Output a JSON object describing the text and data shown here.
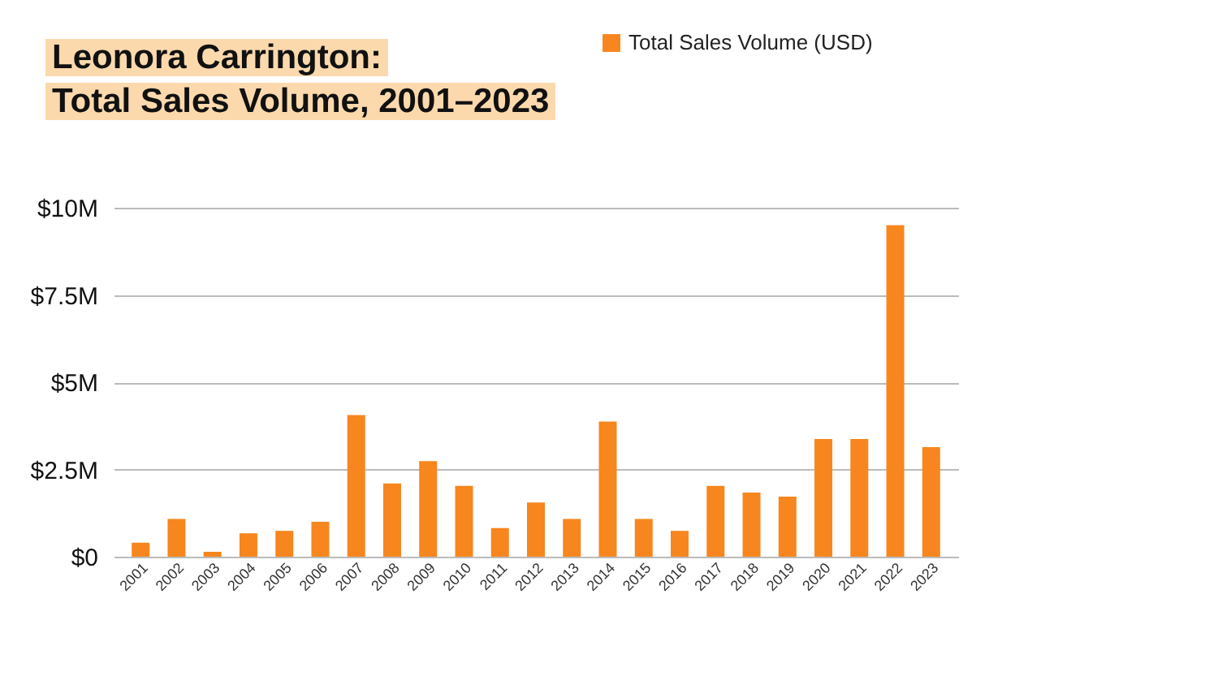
{
  "chart_data": {
    "type": "bar",
    "title": "Leonora Carrington:\nTotal Sales Volume, 2001–2023",
    "categories": [
      "2001",
      "2002",
      "2003",
      "2004",
      "2005",
      "2006",
      "2007",
      "2008",
      "2009",
      "2010",
      "2011",
      "2012",
      "2013",
      "2014",
      "2015",
      "2016",
      "2017",
      "2018",
      "2019",
      "2020",
      "2021",
      "2022",
      "2023"
    ],
    "series": [
      {
        "name": "Total Sales Volume (USD)",
        "color": "#f7861e",
        "values": [
          0.4,
          1.08,
          0.14,
          0.67,
          0.74,
          1.0,
          4.06,
          2.1,
          2.74,
          2.03,
          0.82,
          1.55,
          1.08,
          3.87,
          1.08,
          0.74,
          2.03,
          1.84,
          1.72,
          3.37,
          3.37,
          9.5,
          3.14
        ]
      }
    ],
    "ylim": [
      0,
      10
    ],
    "yticks": [
      {
        "value": 0,
        "label": "$0"
      },
      {
        "value": 2.5,
        "label": "$2.5M"
      },
      {
        "value": 5,
        "label": "$5M"
      },
      {
        "value": 7.5,
        "label": "$7.5M"
      },
      {
        "value": 10,
        "label": "$10M"
      }
    ],
    "grid": "y",
    "legend": "top right"
  }
}
